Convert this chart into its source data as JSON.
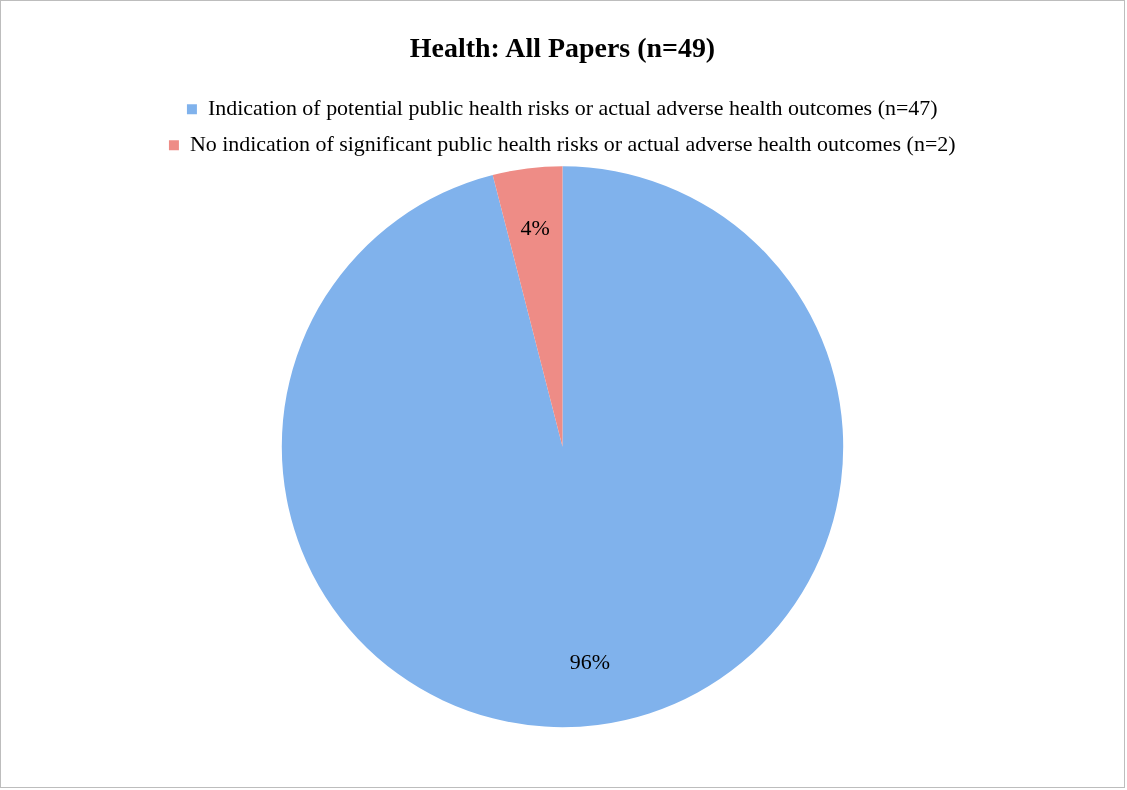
{
  "chart_data": {
    "type": "pie",
    "title": "Health: All Papers (n=49)",
    "categories": [
      "Indication of potential public health risks or actual adverse health outcomes (n=47)",
      "No indication of significant public health risks or actual adverse health outcomes (n=2)"
    ],
    "values": [
      96,
      4
    ],
    "colors": [
      "#80b2ec",
      "#ee8c86"
    ],
    "value_labels": [
      "96%",
      "4%"
    ],
    "legend": "top"
  }
}
